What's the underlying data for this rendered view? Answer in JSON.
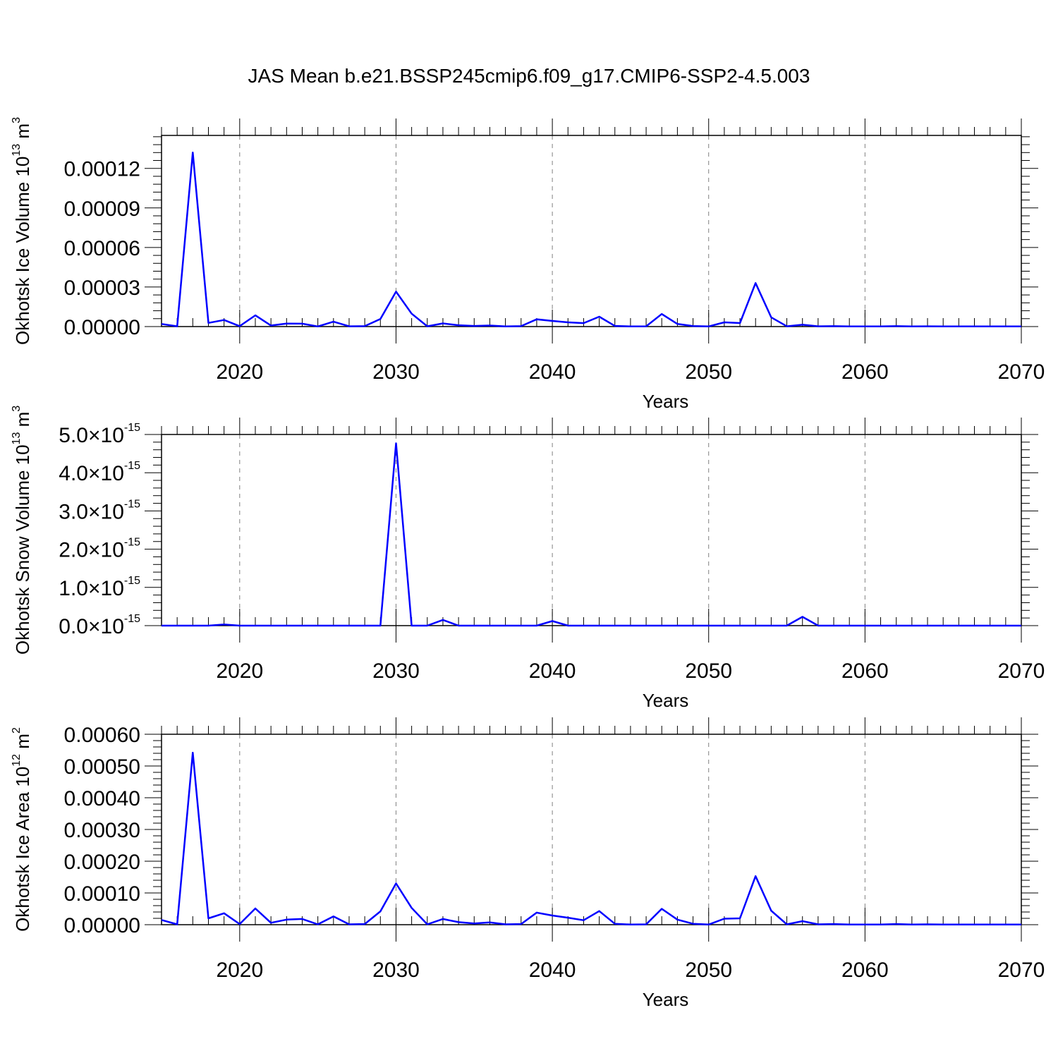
{
  "title": "JAS Mean b.e21.BSSP245cmip6.f09_g17.CMIP6-SSP2-4.5.003",
  "colors": {
    "line": "#0000ff",
    "axis": "#000000",
    "grid": "#808080"
  },
  "chart_data": [
    {
      "type": "line",
      "xlabel": "Years",
      "ylabel_parts": [
        "Okhotsk Ice Volume 10",
        "13",
        " m",
        "3"
      ],
      "xlim": [
        2015,
        2070
      ],
      "ylim": [
        0,
        0.000145
      ],
      "xticks": [
        2020,
        2030,
        2040,
        2050,
        2060,
        2070
      ],
      "yticks": [
        0,
        3e-05,
        6e-05,
        9e-05,
        0.00012
      ],
      "ytick_labels": [
        "0.00000",
        "0.00003",
        "0.00006",
        "0.00009",
        "0.00012"
      ],
      "grid": "x-dashed",
      "series": [
        {
          "x": [
            2015,
            2016,
            2017,
            2018,
            2019,
            2020,
            2021,
            2022,
            2023,
            2024,
            2025,
            2026,
            2027,
            2028,
            2029,
            2030,
            2031,
            2032,
            2033,
            2034,
            2035,
            2036,
            2037,
            2038,
            2039,
            2040,
            2041,
            2042,
            2043,
            2044,
            2045,
            2046,
            2047,
            2048,
            2049,
            2050,
            2051,
            2052,
            2053,
            2054,
            2055,
            2056,
            2057,
            2058,
            2059,
            2060,
            2061,
            2062,
            2063,
            2064,
            2065,
            2066,
            2067,
            2068,
            2069,
            2070
          ],
          "values": [
            2e-06,
            2e-07,
            0.000132,
            2.8e-06,
            5e-06,
            3e-07,
            8.5e-06,
            8e-07,
            2.3e-06,
            2.2e-06,
            1e-07,
            3.7e-06,
            2e-07,
            3e-07,
            5.8e-06,
            2.65e-05,
            9.8e-06,
            2e-07,
            2.4e-06,
            1e-06,
            5e-07,
            8e-07,
            1e-07,
            3e-07,
            5.5e-06,
            4.3e-06,
            3.2e-06,
            2.6e-06,
            7.5e-06,
            5e-07,
            1e-07,
            2e-07,
            9.5e-06,
            2e-06,
            4e-07,
            1e-07,
            3.2e-06,
            2.7e-06,
            3.3e-05,
            7e-06,
            2e-07,
            1.4e-06,
            2e-07,
            3e-07,
            1e-07,
            1e-07,
            1e-07,
            3e-07,
            1e-07,
            2e-07,
            1e-07,
            1e-07,
            1e-07,
            1e-07,
            1e-07,
            1e-07
          ]
        }
      ]
    },
    {
      "type": "line",
      "xlabel": "Years",
      "ylabel_parts": [
        "Okhotsk Snow Volume 10",
        "13",
        " m",
        "3"
      ],
      "xlim": [
        2015,
        2070
      ],
      "ylim": [
        0,
        5e-15
      ],
      "xticks": [
        2020,
        2030,
        2040,
        2050,
        2060,
        2070
      ],
      "yticks": [
        0,
        1e-15,
        2e-15,
        3e-15,
        4e-15,
        5e-15
      ],
      "ytick_labels": [
        [
          "0.0×10",
          "-15"
        ],
        [
          "1.0×10",
          "-15"
        ],
        [
          "2.0×10",
          "-15"
        ],
        [
          "3.0×10",
          "-15"
        ],
        [
          "4.0×10",
          "-15"
        ],
        [
          "5.0×10",
          "-15"
        ]
      ],
      "grid": "x-dashed",
      "series": [
        {
          "x": [
            2015,
            2016,
            2017,
            2018,
            2019,
            2020,
            2021,
            2022,
            2023,
            2024,
            2025,
            2026,
            2027,
            2028,
            2029,
            2030,
            2031,
            2032,
            2033,
            2034,
            2035,
            2036,
            2037,
            2038,
            2039,
            2040,
            2041,
            2042,
            2043,
            2044,
            2045,
            2046,
            2047,
            2048,
            2049,
            2050,
            2051,
            2052,
            2053,
            2054,
            2055,
            2056,
            2057,
            2058,
            2059,
            2060,
            2061,
            2062,
            2063,
            2064,
            2065,
            2066,
            2067,
            2068,
            2069,
            2070
          ],
          "values": [
            0,
            0,
            0,
            0,
            3e-17,
            0,
            0,
            0,
            0,
            0,
            0,
            0,
            0,
            0,
            0,
            4.77e-15,
            0,
            0,
            1.5e-16,
            0,
            0,
            0,
            0,
            0,
            0,
            1.2e-16,
            0,
            0,
            0,
            0,
            0,
            0,
            0,
            0,
            0,
            0,
            0,
            0,
            0,
            0,
            0,
            2.3e-16,
            0,
            0,
            0,
            0,
            0,
            0,
            0,
            0,
            0,
            0,
            0,
            0,
            0,
            0
          ]
        }
      ]
    },
    {
      "type": "line",
      "xlabel": "Years",
      "ylabel_parts": [
        "Okhotsk Ice Area 10",
        "12",
        " m",
        "2"
      ],
      "xlim": [
        2015,
        2070
      ],
      "ylim": [
        0,
        0.0006
      ],
      "xticks": [
        2020,
        2030,
        2040,
        2050,
        2060,
        2070
      ],
      "yticks": [
        0,
        0.0001,
        0.0002,
        0.0003,
        0.0004,
        0.0005,
        0.0006
      ],
      "ytick_labels": [
        "0.00000",
        "0.00010",
        "0.00020",
        "0.00030",
        "0.00040",
        "0.00050",
        "0.00060"
      ],
      "grid": "x-dashed",
      "series": [
        {
          "x": [
            2015,
            2016,
            2017,
            2018,
            2019,
            2020,
            2021,
            2022,
            2023,
            2024,
            2025,
            2026,
            2027,
            2028,
            2029,
            2030,
            2031,
            2032,
            2033,
            2034,
            2035,
            2036,
            2037,
            2038,
            2039,
            2040,
            2041,
            2042,
            2043,
            2044,
            2045,
            2046,
            2047,
            2048,
            2049,
            2050,
            2051,
            2052,
            2053,
            2054,
            2055,
            2056,
            2057,
            2058,
            2059,
            2060,
            2061,
            2062,
            2063,
            2064,
            2065,
            2066,
            2067,
            2068,
            2069,
            2070
          ],
          "values": [
            1.5e-05,
            1e-06,
            0.000542,
            2e-05,
            3.6e-05,
            2e-06,
            5.1e-05,
            6e-06,
            1.6e-05,
            1.8e-05,
            1e-06,
            2.6e-05,
            1e-06,
            2e-06,
            4.2e-05,
            0.00013,
            5.3e-05,
            1e-06,
            1.8e-05,
            8e-06,
            4e-06,
            7e-06,
            1e-06,
            2e-06,
            3.8e-05,
            2.9e-05,
            2.2e-05,
            1.4e-05,
            4.3e-05,
            3e-06,
            5e-07,
            1e-06,
            5e-05,
            1.6e-05,
            3e-06,
            5e-07,
            1.9e-05,
            2e-05,
            0.000153,
            4.4e-05,
            1e-06,
            1.1e-05,
            1e-06,
            2e-06,
            5e-07,
            5e-07,
            5e-07,
            2e-06,
            5e-07,
            1e-06,
            5e-07,
            5e-07,
            5e-07,
            5e-07,
            5e-07,
            5e-07
          ]
        }
      ]
    }
  ]
}
